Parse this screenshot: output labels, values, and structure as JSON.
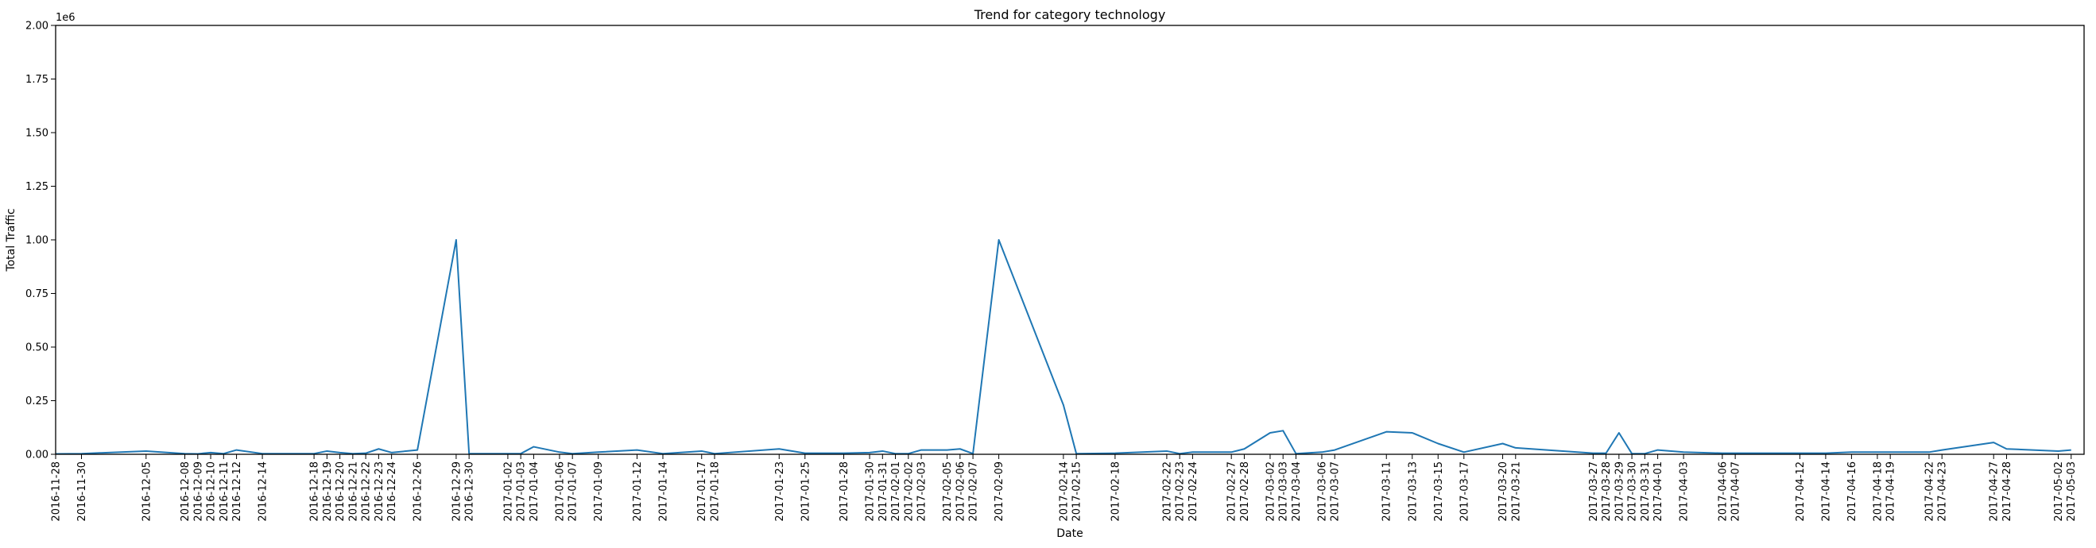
{
  "chart_data": {
    "type": "line",
    "title": "Trend for category technology",
    "xlabel": "Date",
    "ylabel": "Total Traffic",
    "y_offset_label": "1e6",
    "ylim": [
      0,
      2000000
    ],
    "y_ticks": [
      0,
      250000,
      500000,
      750000,
      1000000,
      1250000,
      1500000,
      1750000,
      2000000
    ],
    "y_tick_labels": [
      "0.00",
      "0.25",
      "0.50",
      "0.75",
      "1.00",
      "1.25",
      "1.50",
      "1.75",
      "2.00"
    ],
    "xlim": [
      "2016-11-28",
      "2017-05-04"
    ],
    "grid": false,
    "line_color": "#1f77b4",
    "series": [
      {
        "x": [
          "2016-11-28",
          "2016-11-30",
          "2016-12-05",
          "2016-12-08",
          "2016-12-09",
          "2016-12-10",
          "2016-12-11",
          "2016-12-12",
          "2016-12-14",
          "2016-12-18",
          "2016-12-19",
          "2016-12-20",
          "2016-12-21",
          "2016-12-22",
          "2016-12-23",
          "2016-12-24",
          "2016-12-26",
          "2016-12-29",
          "2016-12-30",
          "2017-01-02",
          "2017-01-03",
          "2017-01-04",
          "2017-01-06",
          "2017-01-07",
          "2017-01-09",
          "2017-01-12",
          "2017-01-14",
          "2017-01-17",
          "2017-01-18",
          "2017-01-23",
          "2017-01-25",
          "2017-01-28",
          "2017-01-30",
          "2017-01-31",
          "2017-02-01",
          "2017-02-02",
          "2017-02-03",
          "2017-02-05",
          "2017-02-06",
          "2017-02-07",
          "2017-02-09",
          "2017-02-14",
          "2017-02-15",
          "2017-02-18",
          "2017-02-22",
          "2017-02-23",
          "2017-02-24",
          "2017-02-27",
          "2017-02-28",
          "2017-03-02",
          "2017-03-03",
          "2017-03-04",
          "2017-03-06",
          "2017-03-07",
          "2017-03-11",
          "2017-03-13",
          "2017-03-15",
          "2017-03-17",
          "2017-03-20",
          "2017-03-21",
          "2017-03-27",
          "2017-03-28",
          "2017-03-29",
          "2017-03-30",
          "2017-03-31",
          "2017-04-01",
          "2017-04-03",
          "2017-04-06",
          "2017-04-07",
          "2017-04-12",
          "2017-04-14",
          "2017-04-16",
          "2017-04-18",
          "2017-04-19",
          "2017-04-22",
          "2017-04-23",
          "2017-04-27",
          "2017-04-28",
          "2017-05-02",
          "2017-05-03"
        ],
        "y": [
          2000,
          3000,
          15000,
          3000,
          2000,
          8000,
          3000,
          20000,
          3000,
          3000,
          15000,
          8000,
          3000,
          5000,
          25000,
          8000,
          20000,
          1000000,
          3000,
          3000,
          3000,
          35000,
          10000,
          3000,
          10000,
          20000,
          3000,
          15000,
          3000,
          25000,
          5000,
          5000,
          8000,
          15000,
          3000,
          3000,
          20000,
          20000,
          25000,
          3000,
          1000000,
          230000,
          3000,
          5000,
          15000,
          3000,
          10000,
          10000,
          25000,
          100000,
          110000,
          3000,
          10000,
          20000,
          105000,
          100000,
          50000,
          10000,
          50000,
          30000,
          5000,
          5000,
          100000,
          3000,
          3000,
          20000,
          10000,
          5000,
          5000,
          5000,
          5000,
          10000,
          10000,
          10000,
          10000,
          20000,
          55000,
          25000,
          15000,
          20000
        ]
      }
    ]
  }
}
